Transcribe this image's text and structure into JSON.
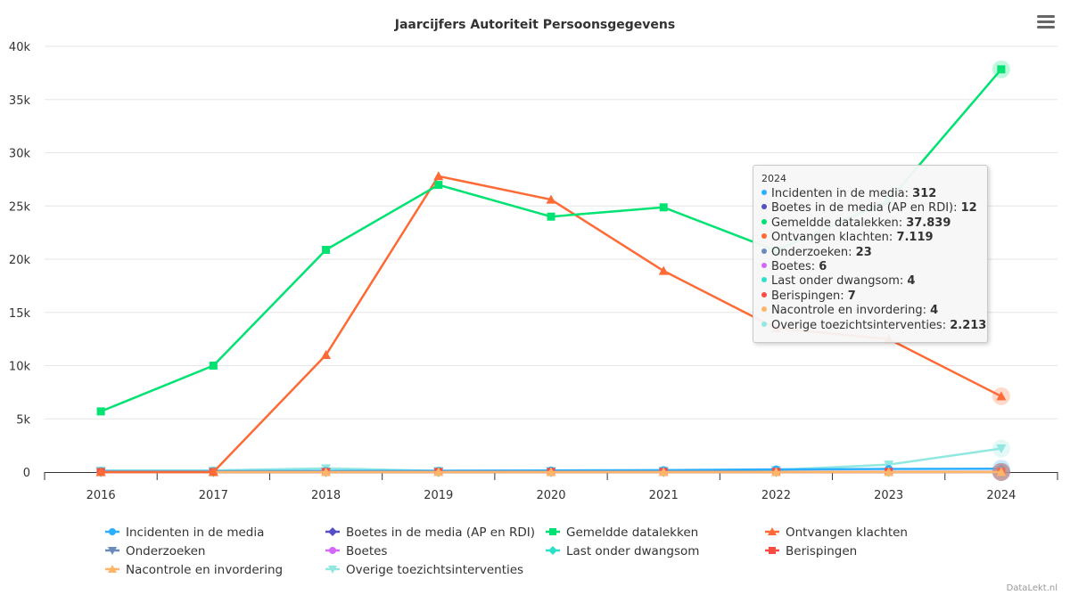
{
  "chart_data": {
    "type": "line",
    "title": "Jaarcijfers Autoriteit Persoonsgegevens",
    "xlabel": "",
    "ylabel": "",
    "ylim": [
      0,
      40000
    ],
    "yticks": [
      0,
      5000,
      10000,
      15000,
      20000,
      25000,
      30000,
      35000,
      40000
    ],
    "ytick_labels": [
      "0",
      "5k",
      "10k",
      "15k",
      "20k",
      "25k",
      "30k",
      "35k",
      "40k"
    ],
    "categories": [
      "2016",
      "2017",
      "2018",
      "2019",
      "2020",
      "2021",
      "2022",
      "2023",
      "2024"
    ],
    "grid": "horizontal",
    "legend_position": "bottom",
    "series": [
      {
        "name": "Incidenten in de media",
        "color": "#2caffe",
        "marker": "circle",
        "values": [
          80,
          85,
          100,
          120,
          150,
          180,
          250,
          290,
          312
        ]
      },
      {
        "name": "Boetes in de media (AP en RDI)",
        "color": "#544fc5",
        "marker": "diamond",
        "values": [
          0,
          0,
          2,
          3,
          4,
          6,
          8,
          10,
          12
        ]
      },
      {
        "name": "Gemeldde datalekken",
        "color": "#00e272",
        "marker": "square",
        "values": [
          5700,
          10000,
          20880,
          26980,
          24000,
          24870,
          20800,
          25500,
          37839
        ]
      },
      {
        "name": "Ontvangen klachten",
        "color": "#fe6a35",
        "marker": "triangle",
        "values": [
          0,
          0,
          11000,
          27800,
          25600,
          18900,
          13500,
          12500,
          7119
        ]
      },
      {
        "name": "Onderzoeken",
        "color": "#6b8abc",
        "marker": "triangle-down",
        "values": [
          10,
          12,
          15,
          15,
          18,
          20,
          20,
          22,
          23
        ]
      },
      {
        "name": "Boetes",
        "color": "#d568fb",
        "marker": "circle",
        "values": [
          0,
          0,
          1,
          2,
          3,
          4,
          5,
          5,
          6
        ]
      },
      {
        "name": "Last onder dwangsom",
        "color": "#2ee0ca",
        "marker": "diamond",
        "values": [
          0,
          0,
          1,
          2,
          2,
          3,
          3,
          4,
          4
        ]
      },
      {
        "name": "Berispingen",
        "color": "#fa4b42",
        "marker": "square",
        "values": [
          0,
          0,
          1,
          2,
          3,
          4,
          5,
          6,
          7
        ]
      },
      {
        "name": "Nacontrole en invordering",
        "color": "#feb56a",
        "marker": "triangle",
        "values": [
          0,
          0,
          1,
          1,
          2,
          2,
          3,
          3,
          4
        ]
      },
      {
        "name": "Overige toezichtsinterventies",
        "color": "#91e8e1",
        "marker": "triangle-down",
        "values": [
          150,
          150,
          350,
          100,
          100,
          150,
          200,
          700,
          2213
        ]
      }
    ],
    "tooltip": {
      "title": "2024",
      "rows": [
        {
          "label": "Incidenten in de media",
          "value": "312",
          "color": "#2caffe"
        },
        {
          "label": "Boetes in de media (AP en RDI)",
          "value": "12",
          "color": "#544fc5"
        },
        {
          "label": "Gemeldde datalekken",
          "value": "37.839",
          "color": "#00e272"
        },
        {
          "label": "Ontvangen klachten",
          "value": "7.119",
          "color": "#fe6a35"
        },
        {
          "label": "Onderzoeken",
          "value": "23",
          "color": "#6b8abc"
        },
        {
          "label": "Boetes",
          "value": "6",
          "color": "#d568fb"
        },
        {
          "label": "Last onder dwangsom",
          "value": "4",
          "color": "#2ee0ca"
        },
        {
          "label": "Berispingen",
          "value": "7",
          "color": "#fa4b42"
        },
        {
          "label": "Nacontrole en invordering",
          "value": "4",
          "color": "#feb56a"
        },
        {
          "label": "Overige toezichtsinterventies",
          "value": "2.213",
          "color": "#91e8e1"
        }
      ]
    },
    "credit": "DataLekt.nl"
  }
}
